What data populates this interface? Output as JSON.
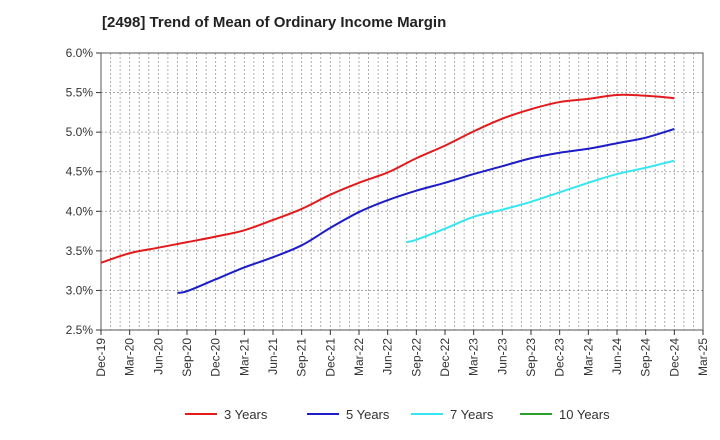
{
  "chart_data": {
    "type": "line",
    "title": "[2498]  Trend of Mean of Ordinary Income Margin",
    "xlabel": "",
    "ylabel": "",
    "x_ticks": [
      "Dec-19",
      "Mar-20",
      "Jun-20",
      "Sep-20",
      "Dec-20",
      "Mar-21",
      "Jun-21",
      "Sep-21",
      "Dec-21",
      "Mar-22",
      "Jun-22",
      "Sep-22",
      "Dec-22",
      "Mar-23",
      "Jun-23",
      "Sep-23",
      "Dec-23",
      "Mar-24",
      "Jun-24",
      "Sep-24",
      "Dec-24",
      "Mar-25"
    ],
    "y_ticks": [
      "2.5%",
      "3.0%",
      "3.5%",
      "4.0%",
      "4.5%",
      "5.0%",
      "5.5%",
      "6.0%"
    ],
    "ylim": [
      2.5,
      6.0
    ],
    "grid": true,
    "legend_position": "bottom",
    "series": [
      {
        "name": "3 Years",
        "color": "#e31a1c",
        "points": [
          [
            "Dec-19",
            3.35
          ],
          [
            "Mar-20",
            3.47
          ],
          [
            "Jun-20",
            3.54
          ],
          [
            "Sep-20",
            3.61
          ],
          [
            "Dec-20",
            3.68
          ],
          [
            "Mar-21",
            3.76
          ],
          [
            "Jun-21",
            3.89
          ],
          [
            "Sep-21",
            4.03
          ],
          [
            "Dec-21",
            4.21
          ],
          [
            "Mar-22",
            4.36
          ],
          [
            "Jun-22",
            4.49
          ],
          [
            "Sep-22",
            4.67
          ],
          [
            "Dec-22",
            4.83
          ],
          [
            "Mar-23",
            5.01
          ],
          [
            "Jun-23",
            5.17
          ],
          [
            "Sep-23",
            5.29
          ],
          [
            "Dec-23",
            5.38
          ],
          [
            "Mar-24",
            5.42
          ],
          [
            "Jun-24",
            5.47
          ],
          [
            "Sep-24",
            5.46
          ],
          [
            "Dec-24",
            5.43
          ]
        ]
      },
      {
        "name": "5 Years",
        "color": "#1c1cc8",
        "points": [
          [
            "Aug-20",
            2.97
          ],
          [
            "Sep-20",
            2.99
          ],
          [
            "Dec-20",
            3.14
          ],
          [
            "Mar-21",
            3.29
          ],
          [
            "Jun-21",
            3.42
          ],
          [
            "Sep-21",
            3.57
          ],
          [
            "Dec-21",
            3.79
          ],
          [
            "Mar-22",
            3.99
          ],
          [
            "Jun-22",
            4.14
          ],
          [
            "Sep-22",
            4.26
          ],
          [
            "Dec-22",
            4.36
          ],
          [
            "Mar-23",
            4.47
          ],
          [
            "Jun-23",
            4.57
          ],
          [
            "Sep-23",
            4.67
          ],
          [
            "Dec-23",
            4.74
          ],
          [
            "Mar-24",
            4.79
          ],
          [
            "Jun-24",
            4.86
          ],
          [
            "Sep-24",
            4.93
          ],
          [
            "Dec-24",
            5.04
          ]
        ]
      },
      {
        "name": "7 Years",
        "color": "#33e6f0",
        "points": [
          [
            "Aug-22",
            3.61
          ],
          [
            "Sep-22",
            3.64
          ],
          [
            "Dec-22",
            3.78
          ],
          [
            "Mar-23",
            3.93
          ],
          [
            "Jun-23",
            4.02
          ],
          [
            "Sep-23",
            4.12
          ],
          [
            "Dec-23",
            4.24
          ],
          [
            "Mar-24",
            4.36
          ],
          [
            "Jun-24",
            4.47
          ],
          [
            "Sep-24",
            4.55
          ],
          [
            "Dec-24",
            4.64
          ]
        ]
      },
      {
        "name": "10 Years",
        "color": "#2ca02c",
        "points": []
      }
    ]
  }
}
